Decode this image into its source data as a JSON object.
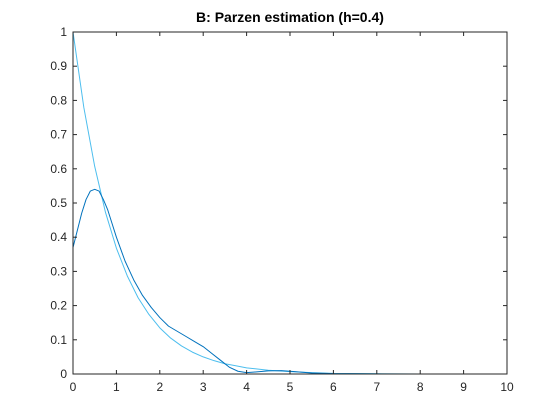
{
  "chart_data": {
    "type": "line",
    "title": "B: Parzen estimation (h=0.4)",
    "xlabel": "",
    "ylabel": "",
    "xlim": [
      0,
      10
    ],
    "ylim": [
      0,
      1
    ],
    "xticks": [
      0,
      1,
      2,
      3,
      4,
      5,
      6,
      7,
      8,
      9,
      10
    ],
    "yticks": [
      0,
      0.1,
      0.2,
      0.3,
      0.4,
      0.5,
      0.6,
      0.7,
      0.8,
      0.9,
      1
    ],
    "xtick_labels": [
      "0",
      "1",
      "2",
      "3",
      "4",
      "5",
      "6",
      "7",
      "8",
      "9",
      "10"
    ],
    "ytick_labels": [
      "0",
      "0.1",
      "0.2",
      "0.3",
      "0.4",
      "0.5",
      "0.6",
      "0.7",
      "0.8",
      "0.9",
      "1"
    ],
    "grid": false,
    "box": true,
    "series": [
      {
        "color": "#4dbeee",
        "x": [
          0,
          0.25,
          0.5,
          0.75,
          1,
          1.25,
          1.5,
          1.75,
          2,
          2.25,
          2.5,
          2.75,
          3,
          3.25,
          3.5,
          3.75,
          4,
          4.5,
          5,
          5.5,
          6,
          7,
          8,
          9,
          10
        ],
        "y": [
          1,
          0.779,
          0.607,
          0.472,
          0.368,
          0.287,
          0.223,
          0.174,
          0.135,
          0.105,
          0.082,
          0.064,
          0.05,
          0.039,
          0.03,
          0.024,
          0.018,
          0.011,
          0.007,
          0.004,
          0.002,
          0.001,
          0,
          0,
          0
        ]
      },
      {
        "color": "#0072bd",
        "x": [
          0,
          0.1,
          0.2,
          0.3,
          0.4,
          0.5,
          0.6,
          0.7,
          0.8,
          0.9,
          1,
          1.2,
          1.4,
          1.6,
          1.8,
          2,
          2.2,
          2.4,
          2.6,
          2.8,
          3,
          3.2,
          3.4,
          3.6,
          3.8,
          4,
          4.2,
          4.5,
          4.8,
          5,
          5.5,
          6,
          7,
          8,
          9,
          10
        ],
        "y": [
          0.37,
          0.42,
          0.47,
          0.51,
          0.535,
          0.54,
          0.535,
          0.51,
          0.48,
          0.44,
          0.4,
          0.33,
          0.275,
          0.23,
          0.195,
          0.165,
          0.14,
          0.125,
          0.11,
          0.095,
          0.08,
          0.06,
          0.04,
          0.02,
          0.008,
          0.004,
          0.006,
          0.009,
          0.01,
          0.008,
          0.003,
          0.001,
          0,
          0,
          0,
          0
        ]
      }
    ]
  }
}
